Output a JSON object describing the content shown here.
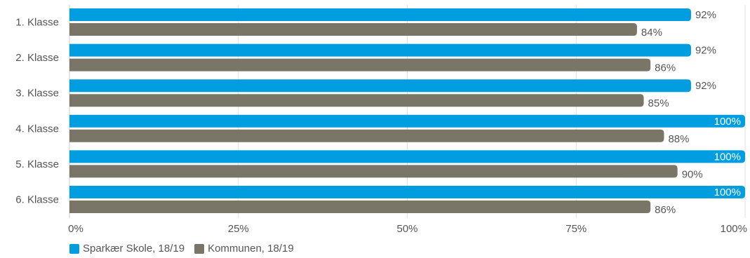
{
  "chart_data": {
    "type": "bar",
    "orientation": "horizontal",
    "categories": [
      "1. Klasse",
      "2. Klasse",
      "3. Klasse",
      "4. Klasse",
      "5. Klasse",
      "6. Klasse"
    ],
    "series": [
      {
        "name": "Sparkær Skole, 18/19",
        "color": "#009ee0",
        "values": [
          92,
          92,
          92,
          100,
          100,
          100
        ]
      },
      {
        "name": "Kommunen, 18/19",
        "color": "#7a7667",
        "values": [
          84,
          86,
          85,
          88,
          90,
          86
        ]
      }
    ],
    "value_labels": {
      "Sparkær Skole, 18/19": [
        "92%",
        "92%",
        "92%",
        "100%",
        "100%",
        "100%"
      ],
      "Kommunen, 18/19": [
        "84%",
        "86%",
        "85%",
        "88%",
        "90%",
        "86%"
      ]
    },
    "xlim": [
      0,
      100
    ],
    "x_ticks": [
      0,
      25,
      50,
      75,
      100
    ],
    "x_tick_labels": [
      "0%",
      "25%",
      "50%",
      "75%",
      "100%"
    ],
    "title": "",
    "xlabel": "",
    "ylabel": "",
    "grid": true,
    "legend_position": "bottom-left"
  }
}
